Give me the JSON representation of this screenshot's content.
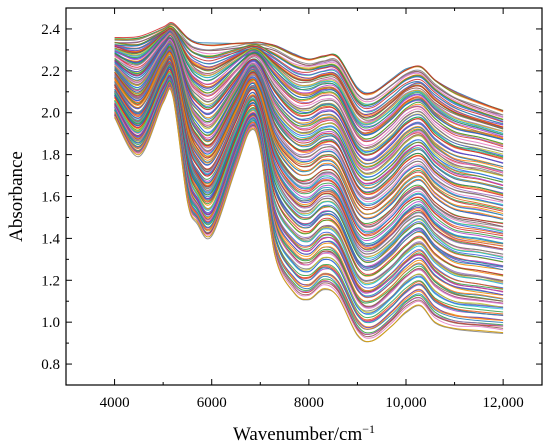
{
  "chart_data": {
    "type": "line",
    "title": "",
    "xlabel": "Wavenumber/cm",
    "xlabel_sup": "−1",
    "ylabel": "Absorbance",
    "xlim": [
      3000,
      12800
    ],
    "ylim": [
      0.7,
      2.5
    ],
    "xticks": [
      4000,
      6000,
      8000,
      10000,
      12000
    ],
    "xtick_labels": [
      "4000",
      "6000",
      "8000",
      "10,000",
      "12,000"
    ],
    "yticks": [
      0.8,
      1.0,
      1.2,
      1.4,
      1.6,
      1.8,
      2.0,
      2.2,
      2.4
    ],
    "ytick_labels": [
      "0.8",
      "1.0",
      "1.2",
      "1.4",
      "1.6",
      "1.8",
      "2.0",
      "2.2",
      "2.4"
    ],
    "grid": false,
    "legend": "none",
    "x": [
      4000,
      4500,
      5000,
      5200,
      5500,
      5700,
      6000,
      6500,
      6800,
      7000,
      7300,
      7700,
      8000,
      8300,
      8600,
      9000,
      9300,
      9700,
      10000,
      10300,
      10600,
      11000,
      11500,
      12000
    ],
    "series": [
      {
        "values": [
          2.35,
          2.36,
          2.4,
          2.42,
          2.36,
          2.34,
          2.33,
          2.33,
          2.33,
          2.33,
          2.32,
          2.28,
          2.26,
          2.27,
          2.27,
          2.12,
          2.1,
          2.16,
          2.21,
          2.22,
          2.16,
          2.1,
          2.05,
          2.01
        ]
      },
      {
        "values": [
          2.28,
          2.24,
          2.35,
          2.37,
          2.2,
          2.14,
          2.12,
          2.22,
          2.28,
          2.27,
          2.18,
          2.09,
          2.08,
          2.11,
          2.09,
          1.92,
          1.9,
          1.97,
          2.04,
          2.06,
          1.99,
          1.93,
          1.9,
          1.87
        ]
      },
      {
        "values": [
          2.2,
          2.1,
          2.28,
          2.3,
          2.02,
          1.92,
          1.88,
          2.08,
          2.2,
          2.16,
          1.98,
          1.87,
          1.86,
          1.9,
          1.88,
          1.69,
          1.66,
          1.73,
          1.81,
          1.84,
          1.76,
          1.7,
          1.68,
          1.65
        ]
      },
      {
        "values": [
          2.12,
          1.98,
          2.2,
          2.22,
          1.86,
          1.74,
          1.7,
          1.95,
          2.1,
          2.04,
          1.78,
          1.64,
          1.62,
          1.67,
          1.64,
          1.44,
          1.41,
          1.48,
          1.56,
          1.59,
          1.51,
          1.45,
          1.43,
          1.41
        ]
      },
      {
        "values": [
          2.05,
          1.9,
          2.13,
          2.15,
          1.72,
          1.6,
          1.54,
          1.85,
          2.0,
          1.93,
          1.55,
          1.4,
          1.37,
          1.43,
          1.4,
          1.2,
          1.17,
          1.24,
          1.31,
          1.35,
          1.27,
          1.21,
          1.19,
          1.17
        ]
      },
      {
        "values": [
          1.98,
          1.8,
          2.05,
          2.08,
          1.58,
          1.48,
          1.42,
          1.74,
          1.92,
          1.83,
          1.32,
          1.14,
          1.11,
          1.16,
          1.12,
          0.94,
          0.91,
          0.98,
          1.05,
          1.08,
          1.0,
          0.97,
          0.96,
          0.95
        ]
      }
    ]
  }
}
